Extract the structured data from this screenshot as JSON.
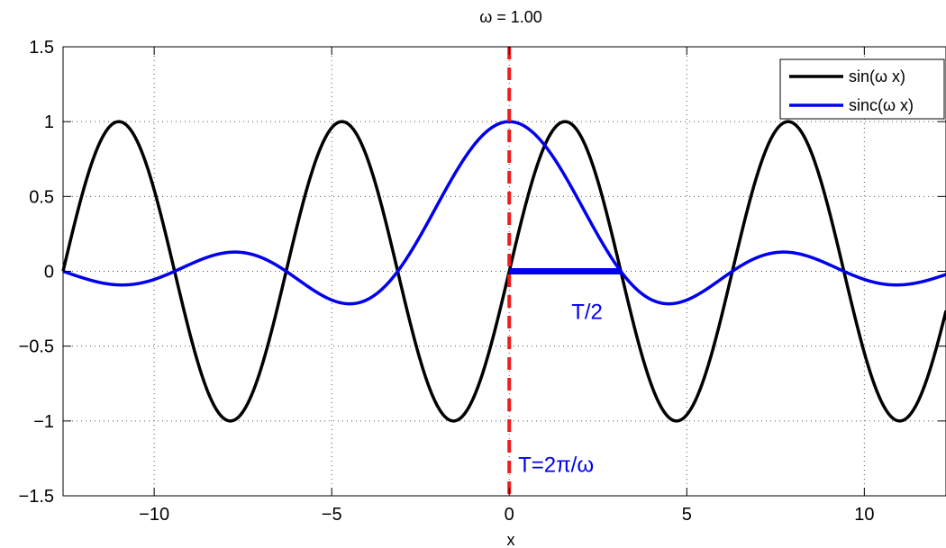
{
  "chart_data": {
    "type": "line",
    "title": "ω = 1.00",
    "xlabel": "x",
    "ylabel": "",
    "xlim": [
      -12.566,
      12.3
    ],
    "ylim": [
      -1.5,
      1.5
    ],
    "xticks": [
      -10,
      -5,
      0,
      5,
      10
    ],
    "xtick_labels": [
      "−10",
      "−5",
      "0",
      "5",
      "10"
    ],
    "yticks": [
      -1.5,
      -1,
      -0.5,
      0,
      0.5,
      1,
      1.5
    ],
    "ytick_labels": [
      "−1.5",
      "−1",
      "−0.5",
      "0",
      "0.5",
      "1",
      "1.5"
    ],
    "grid": true,
    "legend_position": "top-right",
    "omega": 1.0,
    "series": [
      {
        "name": "sin(ω x)",
        "function": "sin",
        "color": "#000000"
      },
      {
        "name": "sinc(ω x)",
        "function": "sinc",
        "color": "#0000ee"
      }
    ],
    "vertical_line": {
      "x": 0,
      "color": "#ee1c1c",
      "style": "dashed"
    },
    "half_period_segment": {
      "x0": 0,
      "x1": 3.1416,
      "y": 0,
      "color": "#0000ee"
    },
    "annotations": [
      {
        "text": "T/2",
        "x": 1.75,
        "y": -0.32,
        "color": "#0000ee"
      },
      {
        "text": "T=2π/ω",
        "x": 0.25,
        "y": -1.34,
        "color": "#0000ee"
      }
    ]
  }
}
